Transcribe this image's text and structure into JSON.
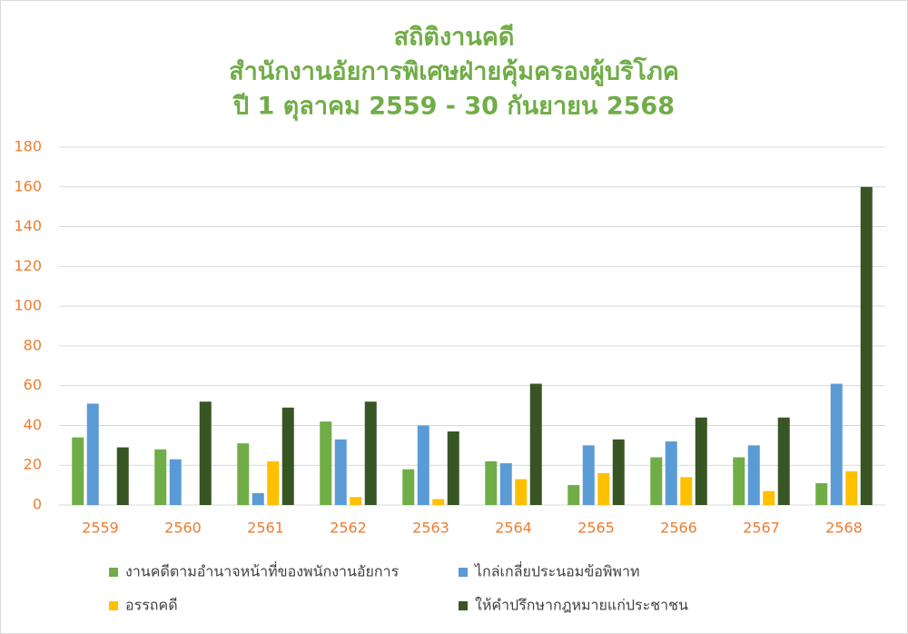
{
  "chart_data": {
    "type": "bar",
    "title": [
      "สถิติงานคดี",
      "สำนักงานอัยการพิเศษฝ่ายคุ้มครองผู้บริโภค",
      "ปี 1 ตุลาคม 2559 - 30 กันยายน 2568"
    ],
    "categories": [
      "2559",
      "2560",
      "2561",
      "2562",
      "2563",
      "2564",
      "2565",
      "2566",
      "2567",
      "2568"
    ],
    "series": [
      {
        "name": "งานคดีตามอำนาจหน้าที่ของพนักงานอัยการ",
        "color": "#70ad47",
        "values": [
          34,
          28,
          31,
          42,
          18,
          22,
          10,
          24,
          24,
          11
        ]
      },
      {
        "name": "ไกล่เกลี่ยประนอมข้อพิพาท",
        "color": "#5b9bd5",
        "values": [
          51,
          23,
          6,
          33,
          40,
          21,
          30,
          32,
          30,
          61
        ]
      },
      {
        "name": "อรรถคดี",
        "color": "#ffc000",
        "values": [
          0,
          0,
          22,
          4,
          3,
          13,
          16,
          14,
          7,
          17
        ]
      },
      {
        "name": "ให้คำปรึกษากฎหมายแก่ประชาชน",
        "color": "#375623",
        "values": [
          29,
          52,
          49,
          52,
          37,
          61,
          33,
          44,
          44,
          160
        ]
      }
    ],
    "ylim": [
      0,
      180
    ],
    "yticks": [
      0,
      20,
      40,
      60,
      80,
      100,
      120,
      140,
      160,
      180
    ],
    "grid": true
  }
}
